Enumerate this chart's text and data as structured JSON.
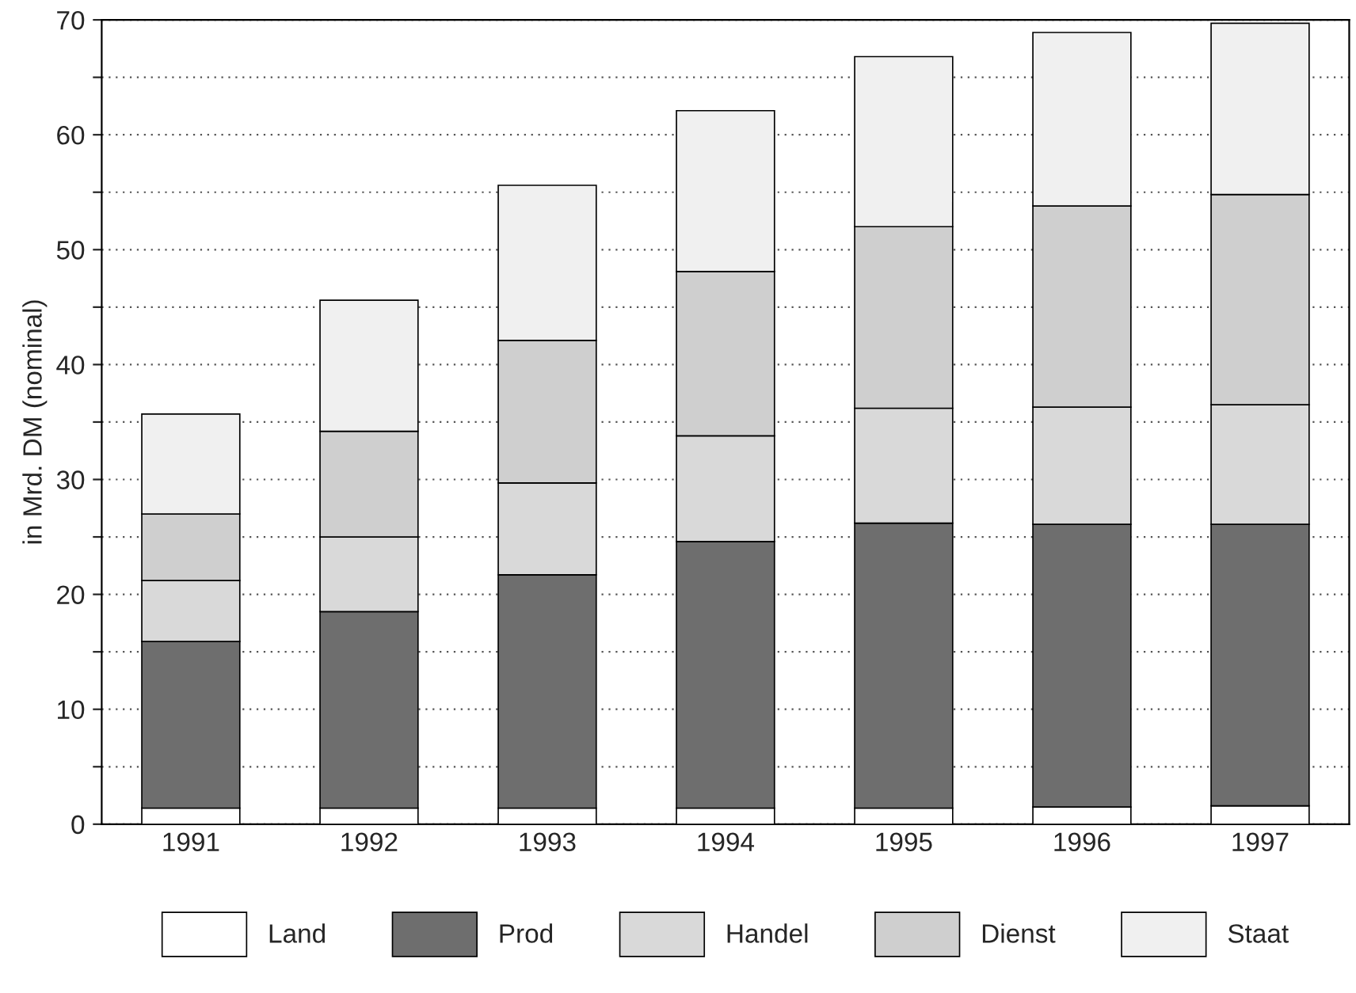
{
  "chart_data": {
    "type": "bar",
    "stacked": true,
    "ylabel": "in Mrd. DM (nominal)",
    "categories": [
      "1991",
      "1992",
      "1993",
      "1994",
      "1995",
      "1996",
      "1997"
    ],
    "series": [
      {
        "name": "Land",
        "color": "#ffffff",
        "values": [
          1.4,
          1.4,
          1.4,
          1.4,
          1.4,
          1.5,
          1.6
        ]
      },
      {
        "name": "Prod",
        "color": "#6e6e6e",
        "values": [
          14.5,
          17.1,
          20.3,
          23.2,
          24.8,
          24.6,
          24.5
        ]
      },
      {
        "name": "Handel",
        "color": "#d9d9d9",
        "values": [
          5.3,
          6.5,
          8.0,
          9.2,
          10.0,
          10.2,
          10.4
        ]
      },
      {
        "name": "Dienst",
        "color": "#cfcfcf",
        "values": [
          5.8,
          9.2,
          12.4,
          14.3,
          15.8,
          17.5,
          18.3
        ]
      },
      {
        "name": "Staat",
        "color": "#f0f0f0",
        "values": [
          8.7,
          11.4,
          13.5,
          14.0,
          14.8,
          15.1,
          14.9
        ]
      }
    ],
    "ylim": [
      0,
      70
    ],
    "yticks": [
      0,
      {
        "value": 5,
        "label": null
      },
      10,
      {
        "value": 15,
        "label": null
      },
      20,
      {
        "value": 25,
        "label": null
      },
      30,
      {
        "value": 35,
        "label": null
      },
      40,
      {
        "value": 45,
        "label": null
      },
      50,
      {
        "value": 55,
        "label": null
      },
      60,
      {
        "value": 65,
        "label": null
      },
      70
    ],
    "grid": "y",
    "legend": "bottom"
  }
}
